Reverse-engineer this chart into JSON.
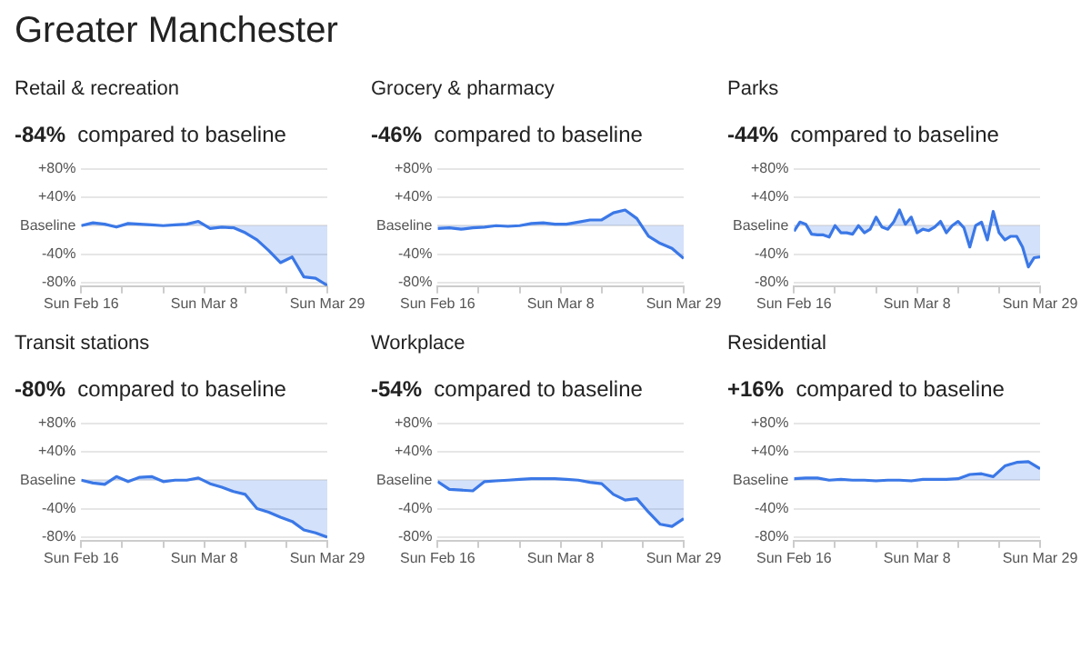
{
  "chart_data": [
    {
      "type": "area",
      "title": "Retail & recreation",
      "subtitle": "-84% compared to baseline",
      "annotations": [
        "Greater Manchester"
      ],
      "x": [
        "--02-16",
        "--02-18",
        "--02-20",
        "--02-22",
        "--02-24",
        "--02-26",
        "--02-28",
        "--03-01",
        "--03-03",
        "--03-05",
        "--03-07",
        "--03-09",
        "--03-11",
        "--03-13",
        "--03-15",
        "--03-17",
        "--03-19",
        "--03-21",
        "--03-23",
        "--03-25",
        "--03-27",
        "--03-29"
      ],
      "series": [
        {
          "color": "#3b78e7",
          "values": [
            0,
            4,
            2,
            -2,
            3,
            2,
            1,
            0,
            1,
            2,
            6,
            -4,
            -2,
            -3,
            -10,
            -20,
            -35,
            -52,
            -44,
            -72,
            -74,
            -84
          ]
        }
      ],
      "ylim": [
        -85,
        80
      ],
      "yticks": [
        {
          "value": -80,
          "label": "-80%"
        },
        {
          "value": -40,
          "label": "-40%"
        },
        {
          "value": 0,
          "label": "Baseline"
        },
        {
          "value": 40,
          "label": "+40%"
        },
        {
          "value": 80,
          "label": "+80%"
        }
      ],
      "xlim": [
        "--02-16",
        "--03-29"
      ],
      "xticks": [
        {
          "value": "--02-16",
          "label": "Sun Feb 16"
        },
        {
          "value": "--02-23",
          "label": null
        },
        {
          "value": "--03-01",
          "label": null
        },
        {
          "value": "--03-08",
          "label": "Sun Mar 8"
        },
        {
          "value": "--03-15",
          "label": null
        },
        {
          "value": "--03-22",
          "label": null
        },
        {
          "value": "--03-29",
          "label": "Sun Mar 29"
        }
      ],
      "grid": "y",
      "legend": false
    },
    {
      "type": "area",
      "title": "Grocery & pharmacy",
      "subtitle": "-46% compared to baseline",
      "x": [
        "--02-16",
        "--02-18",
        "--02-20",
        "--02-22",
        "--02-24",
        "--02-26",
        "--02-28",
        "--03-01",
        "--03-03",
        "--03-05",
        "--03-07",
        "--03-09",
        "--03-11",
        "--03-13",
        "--03-15",
        "--03-17",
        "--03-19",
        "--03-21",
        "--03-23",
        "--03-25",
        "--03-27",
        "--03-29"
      ],
      "series": [
        {
          "color": "#3b78e7",
          "values": [
            -4,
            -3,
            -5,
            -3,
            -2,
            0,
            -1,
            0,
            3,
            4,
            2,
            2,
            5,
            8,
            8,
            18,
            22,
            10,
            -15,
            -25,
            -32,
            -46
          ]
        }
      ],
      "ylim": [
        -85,
        80
      ],
      "yticks": [
        {
          "value": -80,
          "label": "-80%"
        },
        {
          "value": -40,
          "label": "-40%"
        },
        {
          "value": 0,
          "label": "Baseline"
        },
        {
          "value": 40,
          "label": "+40%"
        },
        {
          "value": 80,
          "label": "+80%"
        }
      ],
      "xlim": [
        "--02-16",
        "--03-29"
      ],
      "xticks": [
        {
          "value": "--02-16",
          "label": "Sun Feb 16"
        },
        {
          "value": "--02-23",
          "label": null
        },
        {
          "value": "--03-01",
          "label": null
        },
        {
          "value": "--03-08",
          "label": "Sun Mar 8"
        },
        {
          "value": "--03-15",
          "label": null
        },
        {
          "value": "--03-22",
          "label": null
        },
        {
          "value": "--03-29",
          "label": "Sun Mar 29"
        }
      ],
      "grid": "y",
      "legend": false
    },
    {
      "type": "area",
      "title": "Parks",
      "subtitle": "-44% compared to baseline",
      "x": [
        "--02-16",
        "--02-17",
        "--02-18",
        "--02-19",
        "--02-20",
        "--02-21",
        "--02-22",
        "--02-23",
        "--02-24",
        "--02-25",
        "--02-26",
        "--02-27",
        "--02-28",
        "--02-29",
        "--03-01",
        "--03-02",
        "--03-03",
        "--03-04",
        "--03-05",
        "--03-06",
        "--03-07",
        "--03-08",
        "--03-09",
        "--03-10",
        "--03-11",
        "--03-12",
        "--03-13",
        "--03-14",
        "--03-15",
        "--03-16",
        "--03-17",
        "--03-18",
        "--03-19",
        "--03-20",
        "--03-21",
        "--03-22",
        "--03-23",
        "--03-24",
        "--03-25",
        "--03-26",
        "--03-27",
        "--03-28",
        "--03-29"
      ],
      "series": [
        {
          "color": "#3b78e7",
          "values": [
            -8,
            5,
            2,
            -12,
            -13,
            -13,
            -16,
            0,
            -10,
            -10,
            -12,
            0,
            -10,
            -5,
            12,
            -2,
            -5,
            5,
            22,
            2,
            12,
            -10,
            -5,
            -7,
            -2,
            6,
            -10,
            0,
            6,
            -3,
            -30,
            0,
            5,
            -20,
            20,
            -10,
            -20,
            -15,
            -15,
            -30,
            -58,
            -45,
            -44
          ]
        }
      ],
      "ylim": [
        -85,
        80
      ],
      "yticks": [
        {
          "value": -80,
          "label": "-80%"
        },
        {
          "value": -40,
          "label": "-40%"
        },
        {
          "value": 0,
          "label": "Baseline"
        },
        {
          "value": 40,
          "label": "+40%"
        },
        {
          "value": 80,
          "label": "+80%"
        }
      ],
      "xlim": [
        "--02-16",
        "--03-29"
      ],
      "xticks": [
        {
          "value": "--02-16",
          "label": "Sun Feb 16"
        },
        {
          "value": "--02-23",
          "label": null
        },
        {
          "value": "--03-01",
          "label": null
        },
        {
          "value": "--03-08",
          "label": "Sun Mar 8"
        },
        {
          "value": "--03-15",
          "label": null
        },
        {
          "value": "--03-22",
          "label": null
        },
        {
          "value": "--03-29",
          "label": "Sun Mar 29"
        }
      ],
      "grid": "y",
      "legend": false
    },
    {
      "type": "area",
      "title": "Transit stations",
      "subtitle": "-80% compared to baseline",
      "x": [
        "--02-16",
        "--02-18",
        "--02-20",
        "--02-22",
        "--02-24",
        "--02-26",
        "--02-28",
        "--03-01",
        "--03-03",
        "--03-05",
        "--03-07",
        "--03-09",
        "--03-11",
        "--03-13",
        "--03-15",
        "--03-17",
        "--03-19",
        "--03-21",
        "--03-23",
        "--03-25",
        "--03-27",
        "--03-29"
      ],
      "series": [
        {
          "color": "#3b78e7",
          "values": [
            0,
            -4,
            -6,
            5,
            -2,
            4,
            5,
            -2,
            0,
            0,
            3,
            -5,
            -10,
            -16,
            -20,
            -40,
            -45,
            -52,
            -58,
            -70,
            -74,
            -80
          ]
        }
      ],
      "ylim": [
        -85,
        80
      ],
      "yticks": [
        {
          "value": -80,
          "label": "-80%"
        },
        {
          "value": -40,
          "label": "-40%"
        },
        {
          "value": 0,
          "label": "Baseline"
        },
        {
          "value": 40,
          "label": "+40%"
        },
        {
          "value": 80,
          "label": "+80%"
        }
      ],
      "xlim": [
        "--02-16",
        "--03-29"
      ],
      "xticks": [
        {
          "value": "--02-16",
          "label": "Sun Feb 16"
        },
        {
          "value": "--02-23",
          "label": null
        },
        {
          "value": "--03-01",
          "label": null
        },
        {
          "value": "--03-08",
          "label": "Sun Mar 8"
        },
        {
          "value": "--03-15",
          "label": null
        },
        {
          "value": "--03-22",
          "label": null
        },
        {
          "value": "--03-29",
          "label": "Sun Mar 29"
        }
      ],
      "grid": "y",
      "legend": false
    },
    {
      "type": "area",
      "title": "Workplace",
      "subtitle": "-54% compared to baseline",
      "x": [
        "--02-16",
        "--02-18",
        "--02-20",
        "--02-22",
        "--02-24",
        "--02-26",
        "--02-28",
        "--03-01",
        "--03-03",
        "--03-05",
        "--03-07",
        "--03-09",
        "--03-11",
        "--03-13",
        "--03-15",
        "--03-17",
        "--03-19",
        "--03-21",
        "--03-23",
        "--03-25",
        "--03-27",
        "--03-29"
      ],
      "series": [
        {
          "color": "#3b78e7",
          "values": [
            -2,
            -13,
            -14,
            -15,
            -2,
            -1,
            0,
            1,
            2,
            2,
            2,
            1,
            0,
            -3,
            -5,
            -20,
            -28,
            -26,
            -45,
            -62,
            -65,
            -54
          ]
        }
      ],
      "ylim": [
        -85,
        80
      ],
      "yticks": [
        {
          "value": -80,
          "label": "-80%"
        },
        {
          "value": -40,
          "label": "-40%"
        },
        {
          "value": 0,
          "label": "Baseline"
        },
        {
          "value": 40,
          "label": "+40%"
        },
        {
          "value": 80,
          "label": "+80%"
        }
      ],
      "xlim": [
        "--02-16",
        "--03-29"
      ],
      "xticks": [
        {
          "value": "--02-16",
          "label": "Sun Feb 16"
        },
        {
          "value": "--02-23",
          "label": null
        },
        {
          "value": "--03-01",
          "label": null
        },
        {
          "value": "--03-08",
          "label": "Sun Mar 8"
        },
        {
          "value": "--03-15",
          "label": null
        },
        {
          "value": "--03-22",
          "label": null
        },
        {
          "value": "--03-29",
          "label": "Sun Mar 29"
        }
      ],
      "grid": "y",
      "legend": false
    },
    {
      "type": "area",
      "title": "Residential",
      "subtitle": "+16% compared to baseline",
      "x": [
        "--02-16",
        "--02-18",
        "--02-20",
        "--02-22",
        "--02-24",
        "--02-26",
        "--02-28",
        "--03-01",
        "--03-03",
        "--03-05",
        "--03-07",
        "--03-09",
        "--03-11",
        "--03-13",
        "--03-15",
        "--03-17",
        "--03-19",
        "--03-21",
        "--03-23",
        "--03-25",
        "--03-27",
        "--03-29"
      ],
      "series": [
        {
          "color": "#3b78e7",
          "values": [
            2,
            3,
            3,
            0,
            1,
            0,
            0,
            -1,
            0,
            0,
            -1,
            1,
            1,
            1,
            2,
            8,
            9,
            5,
            20,
            25,
            26,
            16
          ]
        }
      ],
      "ylim": [
        -85,
        80
      ],
      "yticks": [
        {
          "value": -80,
          "label": "-80%"
        },
        {
          "value": -40,
          "label": "-40%"
        },
        {
          "value": 0,
          "label": "Baseline"
        },
        {
          "value": 40,
          "label": "+40%"
        },
        {
          "value": 80,
          "label": "+80%"
        }
      ],
      "xlim": [
        "--02-16",
        "--03-29"
      ],
      "xticks": [
        {
          "value": "--02-16",
          "label": "Sun Feb 16"
        },
        {
          "value": "--02-23",
          "label": null
        },
        {
          "value": "--03-01",
          "label": null
        },
        {
          "value": "--03-08",
          "label": "Sun Mar 8"
        },
        {
          "value": "--03-15",
          "label": null
        },
        {
          "value": "--03-22",
          "label": null
        },
        {
          "value": "--03-29",
          "label": "Sun Mar 29"
        }
      ],
      "grid": "y",
      "legend": false
    }
  ]
}
